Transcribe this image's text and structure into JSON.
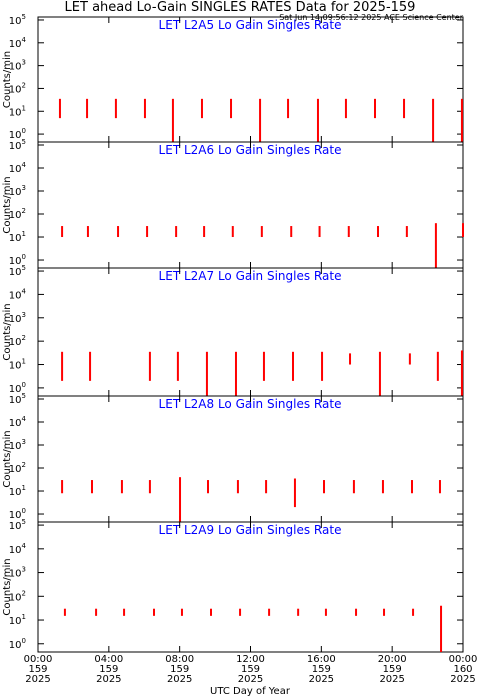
{
  "title": "LET ahead Lo-Gain SINGLES RATES Data for 2025-159",
  "subtitle": "Sat Jun 14 09:56:12 2025 ACE Science Center",
  "x_axis": {
    "label": "UTC Day of Year",
    "xlim": [
      0,
      24
    ],
    "xticks": [
      {
        "value": 0,
        "label": "00:00",
        "day": "159",
        "year": "2025"
      },
      {
        "value": 4,
        "label": "04:00",
        "day": "159",
        "year": "2025"
      },
      {
        "value": 8,
        "label": "08:00",
        "day": "159",
        "year": "2025"
      },
      {
        "value": 12,
        "label": "12:00",
        "day": "159",
        "year": "2025"
      },
      {
        "value": 16,
        "label": "16:00",
        "day": "159",
        "year": "2025"
      },
      {
        "value": 20,
        "label": "20:00",
        "day": "159",
        "year": "2025"
      },
      {
        "value": 24,
        "label": "00:00",
        "day": "160",
        "year": "2025"
      }
    ]
  },
  "chart_data": [
    {
      "type": "spike",
      "title": "LET L2A5 Lo Gain Singles Rate",
      "ylabel": "Counts/min",
      "log_scale": true,
      "color": "#ff0000",
      "ylim": [
        0.45,
        135000
      ],
      "yticks": [
        {
          "value": 1,
          "label": "10",
          "exponent": "0"
        },
        {
          "value": 10,
          "label": "10",
          "exponent": "1"
        },
        {
          "value": 100,
          "label": "10",
          "exponent": "2"
        },
        {
          "value": 1000,
          "label": "10",
          "exponent": "3"
        },
        {
          "value": 10000,
          "label": "10",
          "exponent": "4"
        },
        {
          "value": 100000,
          "label": "10",
          "exponent": "5"
        }
      ],
      "x": [
        1.24,
        2.77,
        4.4,
        6.04,
        7.62,
        9.26,
        10.9,
        12.54,
        14.12,
        15.81,
        17.39,
        19.03,
        20.67,
        22.31,
        23.94
      ],
      "values": [
        35,
        35,
        35,
        35,
        35,
        35,
        35,
        35,
        35,
        35,
        35,
        35,
        35,
        35,
        35
      ],
      "low": [
        5,
        5,
        5,
        5,
        0.45,
        5,
        5,
        0.45,
        5,
        0.45,
        5,
        5,
        5,
        0.45,
        0.45
      ]
    },
    {
      "type": "spike",
      "title": "LET L2A6 Lo Gain Singles Rate",
      "ylabel": "Counts/min",
      "log_scale": true,
      "color": "#ff0000",
      "ylim": [
        0.45,
        135000
      ],
      "yticks": [
        {
          "value": 1,
          "label": "10",
          "exponent": "0"
        },
        {
          "value": 10,
          "label": "10",
          "exponent": "1"
        },
        {
          "value": 100,
          "label": "10",
          "exponent": "2"
        },
        {
          "value": 1000,
          "label": "10",
          "exponent": "3"
        },
        {
          "value": 10000,
          "label": "10",
          "exponent": "4"
        },
        {
          "value": 100000,
          "label": "10",
          "exponent": "5"
        }
      ],
      "x": [
        1.36,
        2.82,
        4.52,
        6.16,
        7.8,
        9.38,
        11.0,
        12.64,
        14.3,
        15.9,
        17.55,
        19.2,
        20.83,
        22.47,
        24.0
      ],
      "values": [
        30,
        30,
        30,
        30,
        30,
        30,
        30,
        30,
        30,
        30,
        30,
        30,
        30,
        40,
        40
      ],
      "low": [
        10,
        10,
        10,
        10,
        10,
        10,
        10,
        10,
        10,
        10,
        10,
        10,
        10,
        0.45,
        10
      ]
    },
    {
      "type": "spike",
      "title": "LET L2A7 Lo Gain Singles Rate",
      "ylabel": "Counts/min",
      "log_scale": true,
      "color": "#ff0000",
      "ylim": [
        0.45,
        135000
      ],
      "yticks": [
        {
          "value": 1,
          "label": "10",
          "exponent": "0"
        },
        {
          "value": 10,
          "label": "10",
          "exponent": "1"
        },
        {
          "value": 100,
          "label": "10",
          "exponent": "2"
        },
        {
          "value": 1000,
          "label": "10",
          "exponent": "3"
        },
        {
          "value": 10000,
          "label": "10",
          "exponent": "4"
        },
        {
          "value": 100000,
          "label": "10",
          "exponent": "5"
        }
      ],
      "x": [
        1.36,
        2.94,
        6.32,
        7.9,
        9.54,
        11.18,
        12.76,
        14.4,
        16.04,
        17.62,
        19.31,
        21.0,
        22.58,
        23.94
      ],
      "values": [
        35,
        35,
        35,
        35,
        35,
        35,
        35,
        35,
        35,
        30,
        35,
        30,
        35,
        40
      ],
      "low": [
        2,
        2,
        2,
        2,
        0.45,
        0.45,
        2,
        2,
        2,
        10,
        0.45,
        10,
        2,
        0.45
      ]
    },
    {
      "type": "spike",
      "title": "LET L2A8 Lo Gain Singles Rate",
      "ylabel": "Counts/min",
      "log_scale": true,
      "color": "#ff0000",
      "ylim": [
        0.45,
        135000
      ],
      "yticks": [
        {
          "value": 1,
          "label": "10",
          "exponent": "0"
        },
        {
          "value": 10,
          "label": "10",
          "exponent": "1"
        },
        {
          "value": 100,
          "label": "10",
          "exponent": "2"
        },
        {
          "value": 1000,
          "label": "10",
          "exponent": "3"
        },
        {
          "value": 10000,
          "label": "10",
          "exponent": "4"
        },
        {
          "value": 100000,
          "label": "10",
          "exponent": "5"
        }
      ],
      "x": [
        1.36,
        3.05,
        4.74,
        6.32,
        8.02,
        9.6,
        11.29,
        12.88,
        14.51,
        16.15,
        17.84,
        19.48,
        21.12,
        22.7
      ],
      "values": [
        30,
        30,
        30,
        30,
        40,
        30,
        30,
        30,
        35,
        30,
        30,
        30,
        30,
        30
      ],
      "low": [
        8,
        8,
        8,
        8,
        0.45,
        8,
        8,
        8,
        2,
        8,
        8,
        8,
        8,
        8
      ]
    },
    {
      "type": "spike",
      "title": "LET L2A9 Lo Gain Singles Rate",
      "ylabel": "Counts/min",
      "log_scale": true,
      "color": "#ff0000",
      "ylim": [
        0.45,
        135000
      ],
      "yticks": [
        {
          "value": 1,
          "label": "10",
          "exponent": "0"
        },
        {
          "value": 10,
          "label": "10",
          "exponent": "1"
        },
        {
          "value": 100,
          "label": "10",
          "exponent": "2"
        },
        {
          "value": 1000,
          "label": "10",
          "exponent": "3"
        },
        {
          "value": 10000,
          "label": "10",
          "exponent": "4"
        },
        {
          "value": 100000,
          "label": "10",
          "exponent": "5"
        }
      ],
      "x": [
        1.52,
        3.28,
        4.86,
        6.55,
        8.13,
        9.77,
        11.41,
        13.05,
        14.69,
        16.26,
        17.96,
        19.54,
        21.18,
        22.76
      ],
      "values": [
        30,
        30,
        30,
        30,
        30,
        30,
        30,
        30,
        30,
        30,
        30,
        30,
        30,
        40
      ],
      "low": [
        15,
        15,
        15,
        15,
        15,
        15,
        15,
        15,
        15,
        15,
        15,
        15,
        15,
        0.45
      ]
    }
  ]
}
